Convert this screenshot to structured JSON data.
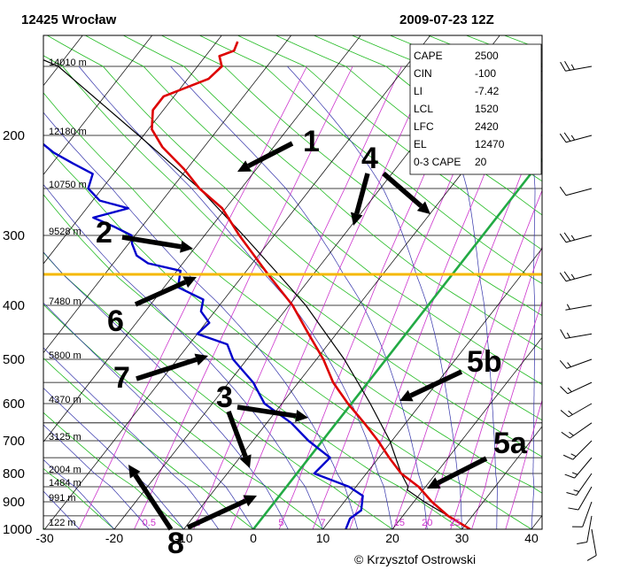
{
  "header": {
    "station": "12425 Wrocław",
    "datetime": "2009-07-23 12Z"
  },
  "copyright": "© Krzysztof Ostrowski",
  "chart_data": {
    "type": "line",
    "pressure_levels": [
      {
        "p": 200,
        "label": "200"
      },
      {
        "p": 300,
        "label": "300"
      },
      {
        "p": 400,
        "label": "400"
      },
      {
        "p": 500,
        "label": "500"
      },
      {
        "p": 600,
        "label": "600"
      },
      {
        "p": 700,
        "label": "700"
      },
      {
        "p": 800,
        "label": "800"
      },
      {
        "p": 900,
        "label": "900"
      },
      {
        "p": 1000,
        "label": "1000"
      }
    ],
    "temperature_ticks": [
      {
        "t": -30,
        "label": "-30"
      },
      {
        "t": -20,
        "label": "-20"
      },
      {
        "t": -10,
        "label": "-10"
      },
      {
        "t": 0,
        "label": "0"
      },
      {
        "t": 10,
        "label": "10"
      },
      {
        "t": 20,
        "label": "20"
      },
      {
        "t": 30,
        "label": "30"
      },
      {
        "t": 40,
        "label": "40"
      }
    ],
    "height_labels": [
      {
        "p": 150,
        "label": "14010 m"
      },
      {
        "p": 200,
        "label": "12180 m"
      },
      {
        "p": 250,
        "label": "10750 m"
      },
      {
        "p": 300,
        "label": "9528 m"
      },
      {
        "p": 400,
        "label": "7480 m"
      },
      {
        "p": 500,
        "label": "5800 m"
      },
      {
        "p": 600,
        "label": "4370 m"
      },
      {
        "p": 700,
        "label": "3125 m"
      },
      {
        "p": 800,
        "label": "2004 m"
      },
      {
        "p": 850,
        "label": "1484 m"
      },
      {
        "p": 900,
        "label": "991 m"
      },
      {
        "p": 1000,
        "label": "122 m"
      }
    ],
    "mixing_ratio_labels": [
      {
        "t": -15,
        "label": "0.5"
      },
      {
        "t": -8,
        "label": "1"
      },
      {
        "t": 4,
        "label": "5"
      },
      {
        "t": 10,
        "label": "7"
      },
      {
        "t": 21,
        "label": "15"
      },
      {
        "t": 25,
        "label": "20"
      },
      {
        "t": 29,
        "label": "25"
      }
    ],
    "temperature_profile": [
      {
        "p": 1000,
        "t": 31.2
      },
      {
        "p": 950,
        "t": 26.5
      },
      {
        "p": 900,
        "t": 22.6
      },
      {
        "p": 850,
        "t": 19.0
      },
      {
        "p": 800,
        "t": 15.0
      },
      {
        "p": 750,
        "t": 11.5
      },
      {
        "p": 700,
        "t": 8.0
      },
      {
        "p": 650,
        "t": 4.0
      },
      {
        "p": 600,
        "t": -0.5
      },
      {
        "p": 550,
        "t": -5.0
      },
      {
        "p": 500,
        "t": -9.0
      },
      {
        "p": 450,
        "t": -14.0
      },
      {
        "p": 400,
        "t": -19.5
      },
      {
        "p": 350,
        "t": -26.5
      },
      {
        "p": 300,
        "t": -35.0
      },
      {
        "p": 270,
        "t": -40.5
      },
      {
        "p": 250,
        "t": -46.0
      },
      {
        "p": 230,
        "t": -50.5
      },
      {
        "p": 210,
        "t": -56.0
      },
      {
        "p": 195,
        "t": -59.5
      },
      {
        "p": 180,
        "t": -61.5
      },
      {
        "p": 170,
        "t": -61.5
      },
      {
        "p": 158,
        "t": -57.0
      },
      {
        "p": 150,
        "t": -56.5
      },
      {
        "p": 140,
        "t": -58.0
      },
      {
        "p": 135,
        "t": -56.5
      },
      {
        "p": 127,
        "t": -57.0
      }
    ],
    "dewpoint_profile": [
      {
        "p": 1000,
        "t": 13.3
      },
      {
        "p": 960,
        "t": 12.7
      },
      {
        "p": 930,
        "t": 13.4
      },
      {
        "p": 880,
        "t": 12.0
      },
      {
        "p": 850,
        "t": 9.0
      },
      {
        "p": 800,
        "t": 2.5
      },
      {
        "p": 750,
        "t": 3.0
      },
      {
        "p": 700,
        "t": -2.0
      },
      {
        "p": 650,
        "t": -6.5
      },
      {
        "p": 600,
        "t": -12.5
      },
      {
        "p": 550,
        "t": -16.5
      },
      {
        "p": 500,
        "t": -22.0
      },
      {
        "p": 470,
        "t": -24.5
      },
      {
        "p": 450,
        "t": -30.0
      },
      {
        "p": 430,
        "t": -29.5
      },
      {
        "p": 410,
        "t": -32.0
      },
      {
        "p": 390,
        "t": -33.0
      },
      {
        "p": 370,
        "t": -38.0
      },
      {
        "p": 345,
        "t": -39.5
      },
      {
        "p": 335,
        "t": -45.0
      },
      {
        "p": 325,
        "t": -47.5
      },
      {
        "p": 310,
        "t": -49.5
      },
      {
        "p": 300,
        "t": -50.5
      },
      {
        "p": 290,
        "t": -54.0
      },
      {
        "p": 280,
        "t": -58.0
      },
      {
        "p": 270,
        "t": -54.0
      },
      {
        "p": 262,
        "t": -59.0
      },
      {
        "p": 250,
        "t": -62.0
      },
      {
        "p": 235,
        "t": -63.0
      },
      {
        "p": 225,
        "t": -67.0
      },
      {
        "p": 215,
        "t": -71.0
      },
      {
        "p": 200,
        "t": -76.0
      },
      {
        "p": 185,
        "t": -79.0
      },
      {
        "p": 170,
        "t": -81.0
      },
      {
        "p": 158,
        "t": -86.0
      },
      {
        "p": 148,
        "t": -92.0
      },
      {
        "p": 140,
        "t": -92.0
      },
      {
        "p": 132,
        "t": -91.0
      },
      {
        "p": 127,
        "t": -94.0
      }
    ],
    "parcel_profile": [
      {
        "p": 1000,
        "t": 31.2
      },
      {
        "p": 950,
        "t": 26.5
      },
      {
        "p": 900,
        "t": 21.5
      },
      {
        "p": 860,
        "t": 17.7
      },
      {
        "p": 850,
        "t": 17.5
      },
      {
        "p": 800,
        "t": 15.0
      },
      {
        "p": 700,
        "t": 9.7
      },
      {
        "p": 600,
        "t": 2.7
      },
      {
        "p": 500,
        "t": -6.0
      },
      {
        "p": 400,
        "t": -17.6
      },
      {
        "p": 350,
        "t": -25.0
      },
      {
        "p": 300,
        "t": -34.4
      },
      {
        "p": 250,
        "t": -46.0
      },
      {
        "p": 200,
        "t": -60.7
      },
      {
        "p": 150,
        "t": -80.0
      },
      {
        "p": 127,
        "t": -91.0
      }
    ],
    "tropopause_line": {
      "p": 350
    },
    "indices": [
      {
        "name": "CAPE",
        "value": "2500"
      },
      {
        "name": "CIN",
        "value": "-100"
      },
      {
        "name": "LI",
        "value": "-7.42"
      },
      {
        "name": "LCL",
        "value": "1520"
      },
      {
        "name": "LFC",
        "value": "2420"
      },
      {
        "name": "EL",
        "value": "12470"
      },
      {
        "name": "0-3 CAPE",
        "value": "20"
      }
    ],
    "annotations": [
      {
        "id": "1",
        "label": "1"
      },
      {
        "id": "2",
        "label": "2"
      },
      {
        "id": "3",
        "label": "3"
      },
      {
        "id": "4",
        "label": "4"
      },
      {
        "id": "5a",
        "label": "5a"
      },
      {
        "id": "5b",
        "label": "5b"
      },
      {
        "id": "6",
        "label": "6"
      },
      {
        "id": "7",
        "label": "7"
      },
      {
        "id": "8",
        "label": "8"
      }
    ],
    "wind_barbs": [
      {
        "p": 150,
        "dir": 260,
        "kt": 25
      },
      {
        "p": 200,
        "dir": 255,
        "kt": 25
      },
      {
        "p": 250,
        "dir": 255,
        "kt": 10
      },
      {
        "p": 300,
        "dir": 255,
        "kt": 25
      },
      {
        "p": 350,
        "dir": 255,
        "kt": 25
      },
      {
        "p": 400,
        "dir": 260,
        "kt": 5
      },
      {
        "p": 450,
        "dir": 260,
        "kt": 15
      },
      {
        "p": 500,
        "dir": 250,
        "kt": 15
      },
      {
        "p": 550,
        "dir": 245,
        "kt": 15
      },
      {
        "p": 600,
        "dir": 240,
        "kt": 15
      },
      {
        "p": 650,
        "dir": 235,
        "kt": 15
      },
      {
        "p": 700,
        "dir": 225,
        "kt": 15
      },
      {
        "p": 750,
        "dir": 220,
        "kt": 15
      },
      {
        "p": 800,
        "dir": 215,
        "kt": 15
      },
      {
        "p": 850,
        "dir": 210,
        "kt": 10
      },
      {
        "p": 900,
        "dir": 200,
        "kt": 10
      },
      {
        "p": 950,
        "dir": 190,
        "kt": 10
      },
      {
        "p": 1000,
        "dir": 170,
        "kt": 10
      }
    ],
    "colors": {
      "temperature": "#dd0000",
      "dewpoint": "#0000cc",
      "parcel": "#000000",
      "tropopause": "#f5b800",
      "isotherm_zero": "#22aa44",
      "mixing_ratio": "#cc33cc",
      "dry_adiabat": "#22bb22",
      "moist_adiabat": "#3333aa"
    }
  }
}
